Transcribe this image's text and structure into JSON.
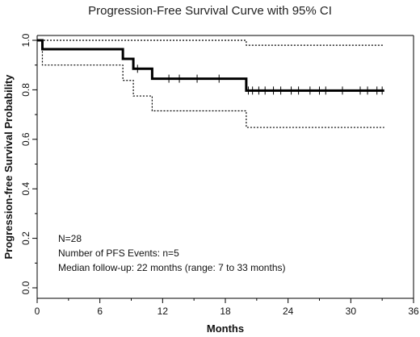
{
  "chart_data": {
    "type": "line",
    "title": "Progression-Free Survival Curve with 95% CI",
    "xlabel": "Months",
    "ylabel": "Progression-free Survival Probability",
    "xlim": [
      0,
      36
    ],
    "ylim": [
      0,
      1.0
    ],
    "x_ticks": [
      0,
      6,
      12,
      18,
      24,
      30,
      36
    ],
    "x_tick_labels": [
      "0",
      "6",
      "12",
      "18",
      "24",
      "30",
      "36"
    ],
    "y_ticks": [
      0,
      0.2,
      0.4,
      0.6,
      0.8,
      1.0
    ],
    "y_tick_labels": [
      "0.0",
      "0.2",
      "0.4",
      "0.6",
      "0.8",
      "1.0"
    ],
    "grid": false,
    "series": [
      {
        "style": "solid-thick",
        "x": [
          0,
          0.5,
          8.2,
          9.2,
          11,
          20,
          33.2
        ],
        "y": [
          1.0,
          0.964,
          0.925,
          0.885,
          0.845,
          0.797,
          0.797
        ]
      },
      {
        "style": "dotted-upper",
        "x": [
          0,
          20,
          33.2
        ],
        "y": [
          1.0,
          0.98,
          0.98
        ]
      },
      {
        "style": "dotted-lower",
        "x": [
          0,
          0.5,
          8.2,
          9.2,
          11,
          20,
          33.2
        ],
        "y": [
          1.0,
          0.9,
          0.838,
          0.775,
          0.715,
          0.648,
          0.648
        ]
      }
    ],
    "censor_marks": [
      9.6,
      12.6,
      13.6,
      15.3,
      17.4,
      20.2,
      20.6,
      21.2,
      21.8,
      22.6,
      23.3,
      24.3,
      25.0,
      26.1,
      27.0,
      27.6,
      29.2,
      30.9,
      31.6,
      32.5,
      33.0
    ],
    "annotations": [
      "N=28",
      "Number of PFS Events: n=5",
      "Median follow-up: 22 months (range: 7 to 33 months)"
    ]
  }
}
